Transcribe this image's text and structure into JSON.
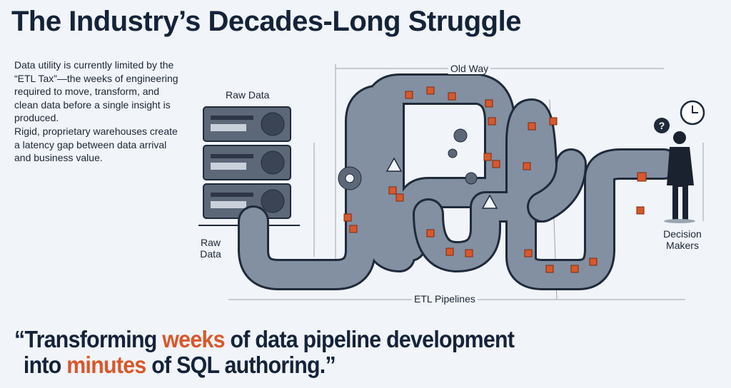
{
  "title": "The Industry’s Decades-Long Struggle",
  "body": {
    "paragraph1": "Data utility is currently limited by the “ETL Tax”—the weeks of engineering required to move, transform, and clean data before a single insight is produced.",
    "paragraph2": "Rigid, proprietary warehouses create a latency gap between data arrival and business value."
  },
  "diagram": {
    "label_old_way": "Old Way",
    "label_raw_data_top": "Raw Data",
    "label_raw_data_side": "Raw Data",
    "label_etl": "ETL Pipelines",
    "label_decision": "Decision Makers",
    "icons": [
      "server-icon",
      "pipe-icon",
      "gear-icon",
      "warning-icon",
      "data-cube-icon",
      "clock-icon",
      "question-icon",
      "person-icon"
    ]
  },
  "quote": {
    "open": "“Transforming ",
    "hl1": "weeks",
    "mid1": " of data pipeline development",
    "start2": "into ",
    "hl2": "minutes",
    "end2": " of SQL authoring.”"
  },
  "colors": {
    "title": "#14233a",
    "accent": "#d9582b",
    "pipe": "#7d8a9c",
    "background": "#f1f4f8"
  }
}
